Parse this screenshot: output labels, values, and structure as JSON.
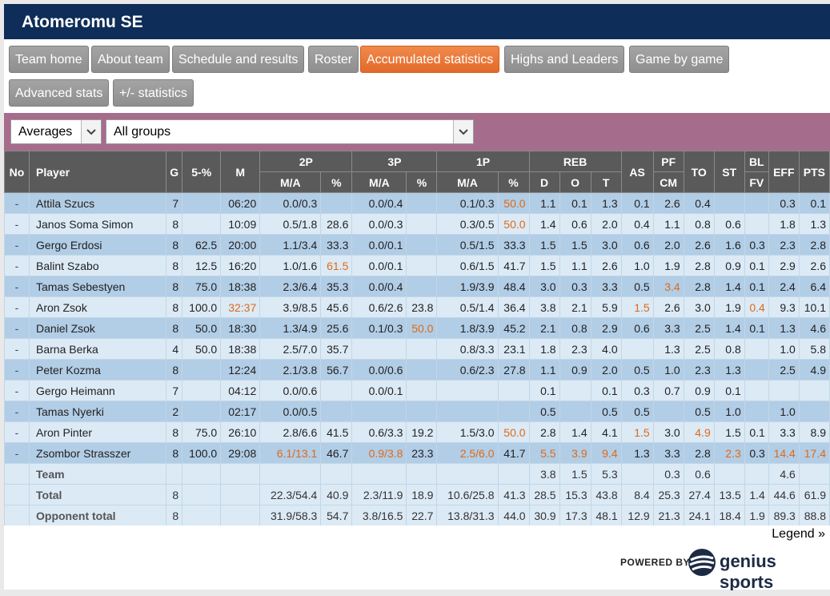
{
  "team": {
    "title": "Atomeromu SE"
  },
  "nav": {
    "tabs": [
      {
        "label": "Team home"
      },
      {
        "label": "About team"
      },
      {
        "label": "Schedule and results"
      },
      {
        "label": "Roster"
      },
      {
        "label": "Accumulated statistics",
        "active": true
      },
      {
        "label": "Highs and Leaders"
      },
      {
        "label": "Game by game"
      },
      {
        "label": "Advanced stats"
      },
      {
        "label": "+/- statistics"
      }
    ]
  },
  "filters": {
    "mode": "Averages",
    "group": "All groups"
  },
  "table": {
    "header_top": {
      "no": "No",
      "player": "Player",
      "g": "G",
      "five": "5-%",
      "m": "M",
      "p2": "2P",
      "p3": "3P",
      "p1": "1P",
      "reb": "REB",
      "as": "AS",
      "pf": "PF",
      "to": "TO",
      "st": "ST",
      "bl": "BL",
      "eff": "EFF",
      "pts": "PTS"
    },
    "header_sub": {
      "p2_ma": "M/A",
      "p2_pct": "%",
      "p3_ma": "M/A",
      "p3_pct": "%",
      "p1_ma": "M/A",
      "p1_pct": "%",
      "d": "D",
      "o": "O",
      "t": "T",
      "cm": "CM",
      "fv": "FV"
    },
    "rows": [
      {
        "no": "-",
        "name": "Attila Szucs",
        "g": "7",
        "five": "",
        "m": "06:20",
        "p2ma": "0.0/0.3",
        "p2p": "",
        "p3ma": "0.0/0.4",
        "p3p": "",
        "p1ma": "0.1/0.3",
        "p1p": "50.0",
        "d": "1.1",
        "o": "0.1",
        "t": "1.3",
        "as": "0.1",
        "pf": "2.6",
        "cm": "",
        "to": "0.4",
        "st": "",
        "bl": "",
        "fv": "",
        "eff": "0.3",
        "pts": "0.1",
        "hi": [
          "p1p"
        ]
      },
      {
        "no": "-",
        "name": "Janos Soma Simon",
        "g": "8",
        "five": "",
        "m": "10:09",
        "p2ma": "0.5/1.8",
        "p2p": "28.6",
        "p3ma": "0.0/0.3",
        "p3p": "",
        "p1ma": "0.3/0.5",
        "p1p": "50.0",
        "d": "1.4",
        "o": "0.6",
        "t": "2.0",
        "as": "0.4",
        "pf": "1.1",
        "to": "0.8",
        "st": "0.6",
        "bl": "",
        "eff": "1.8",
        "pts": "1.3",
        "hi": [
          "p1p"
        ]
      },
      {
        "no": "-",
        "name": "Gergo Erdosi",
        "g": "8",
        "five": "62.5",
        "m": "20:00",
        "p2ma": "1.1/3.4",
        "p2p": "33.3",
        "p3ma": "0.0/0.1",
        "p3p": "",
        "p1ma": "0.5/1.5",
        "p1p": "33.3",
        "d": "1.5",
        "o": "1.5",
        "t": "3.0",
        "as": "0.6",
        "pf": "2.0",
        "to": "2.6",
        "st": "1.6",
        "bl": "0.3",
        "eff": "2.3",
        "pts": "2.8",
        "hi": []
      },
      {
        "no": "-",
        "name": "Balint Szabo",
        "g": "8",
        "five": "12.5",
        "m": "16:20",
        "p2ma": "1.0/1.6",
        "p2p": "61.5",
        "p3ma": "0.0/0.1",
        "p3p": "",
        "p1ma": "0.6/1.5",
        "p1p": "41.7",
        "d": "1.5",
        "o": "1.1",
        "t": "2.6",
        "as": "1.0",
        "pf": "1.9",
        "to": "2.8",
        "st": "0.9",
        "bl": "0.1",
        "eff": "2.9",
        "pts": "2.6",
        "hi": [
          "p2p"
        ]
      },
      {
        "no": "-",
        "name": "Tamas Sebestyen",
        "g": "8",
        "five": "75.0",
        "m": "18:38",
        "p2ma": "2.3/6.4",
        "p2p": "35.3",
        "p3ma": "0.0/0.4",
        "p3p": "",
        "p1ma": "1.9/3.9",
        "p1p": "48.4",
        "d": "3.0",
        "o": "0.3",
        "t": "3.3",
        "as": "0.5",
        "pf": "3.4",
        "to": "2.8",
        "st": "1.4",
        "bl": "0.1",
        "eff": "2.4",
        "pts": "6.4",
        "hi": [
          "pf"
        ]
      },
      {
        "no": "-",
        "name": "Aron Zsok",
        "g": "8",
        "five": "100.0",
        "m": "32:37",
        "p2ma": "3.9/8.5",
        "p2p": "45.6",
        "p3ma": "0.6/2.6",
        "p3p": "23.8",
        "p1ma": "0.5/1.4",
        "p1p": "36.4",
        "d": "3.8",
        "o": "2.1",
        "t": "5.9",
        "as": "1.5",
        "pf": "2.6",
        "to": "3.0",
        "st": "1.9",
        "bl": "0.4",
        "eff": "9.3",
        "pts": "10.1",
        "hi": [
          "m",
          "as",
          "bl"
        ]
      },
      {
        "no": "-",
        "name": "Daniel Zsok",
        "g": "8",
        "five": "50.0",
        "m": "18:30",
        "p2ma": "1.3/4.9",
        "p2p": "25.6",
        "p3ma": "0.1/0.3",
        "p3p": "50.0",
        "p1ma": "1.8/3.9",
        "p1p": "45.2",
        "d": "2.1",
        "o": "0.8",
        "t": "2.9",
        "as": "0.6",
        "pf": "3.3",
        "to": "2.5",
        "st": "1.4",
        "bl": "0.1",
        "eff": "1.3",
        "pts": "4.6",
        "hi": [
          "p3p"
        ]
      },
      {
        "no": "-",
        "name": "Barna Berka",
        "g": "4",
        "five": "50.0",
        "m": "18:38",
        "p2ma": "2.5/7.0",
        "p2p": "35.7",
        "p3ma": "",
        "p3p": "",
        "p1ma": "0.8/3.3",
        "p1p": "23.1",
        "d": "1.8",
        "o": "2.3",
        "t": "4.0",
        "as": "",
        "pf": "1.3",
        "to": "2.5",
        "st": "0.8",
        "bl": "",
        "eff": "1.0",
        "pts": "5.8",
        "hi": []
      },
      {
        "no": "-",
        "name": "Peter Kozma",
        "g": "8",
        "five": "",
        "m": "12:24",
        "p2ma": "2.1/3.8",
        "p2p": "56.7",
        "p3ma": "0.0/0.6",
        "p3p": "",
        "p1ma": "0.6/2.3",
        "p1p": "27.8",
        "d": "1.1",
        "o": "0.9",
        "t": "2.0",
        "as": "0.5",
        "pf": "1.0",
        "to": "2.3",
        "st": "1.3",
        "bl": "",
        "eff": "2.5",
        "pts": "4.9",
        "hi": []
      },
      {
        "no": "-",
        "name": "Gergo Heimann",
        "g": "7",
        "five": "",
        "m": "04:12",
        "p2ma": "0.0/0.6",
        "p2p": "",
        "p3ma": "0.0/0.1",
        "p3p": "",
        "p1ma": "",
        "p1p": "",
        "d": "0.1",
        "o": "",
        "t": "0.1",
        "as": "0.3",
        "pf": "0.7",
        "to": "0.9",
        "st": "0.1",
        "bl": "",
        "eff": "",
        "pts": "",
        "hi": []
      },
      {
        "no": "-",
        "name": "Tamas Nyerki",
        "g": "2",
        "five": "",
        "m": "02:17",
        "p2ma": "0.0/0.5",
        "p2p": "",
        "p3ma": "",
        "p3p": "",
        "p1ma": "",
        "p1p": "",
        "d": "0.5",
        "o": "",
        "t": "0.5",
        "as": "0.5",
        "pf": "",
        "to": "0.5",
        "st": "1.0",
        "bl": "",
        "eff": "1.0",
        "pts": "",
        "hi": []
      },
      {
        "no": "-",
        "name": "Aron Pinter",
        "g": "8",
        "five": "75.0",
        "m": "26:10",
        "p2ma": "2.8/6.6",
        "p2p": "41.5",
        "p3ma": "0.6/3.3",
        "p3p": "19.2",
        "p1ma": "1.5/3.0",
        "p1p": "50.0",
        "d": "2.8",
        "o": "1.4",
        "t": "4.1",
        "as": "1.5",
        "pf": "3.0",
        "to": "4.9",
        "st": "1.5",
        "bl": "0.1",
        "eff": "3.3",
        "pts": "8.9",
        "hi": [
          "p1p",
          "as",
          "to"
        ]
      },
      {
        "no": "-",
        "name": "Zsombor Strasszer",
        "g": "8",
        "five": "100.0",
        "m": "29:08",
        "p2ma": "6.1/13.1",
        "p2p": "46.7",
        "p3ma": "0.9/3.8",
        "p3p": "23.3",
        "p1ma": "2.5/6.0",
        "p1p": "41.7",
        "d": "5.5",
        "o": "3.9",
        "t": "9.4",
        "as": "1.3",
        "pf": "3.3",
        "to": "2.8",
        "st": "2.3",
        "bl": "0.3",
        "eff": "14.4",
        "pts": "17.4",
        "hi": [
          "p2ma",
          "p3ma",
          "p1ma",
          "d",
          "o",
          "t",
          "st",
          "eff",
          "pts"
        ]
      }
    ],
    "totals": [
      {
        "name": "Team",
        "g": "",
        "five": "",
        "m": "",
        "p2ma": "",
        "p2p": "",
        "p3ma": "",
        "p3p": "",
        "p1ma": "",
        "p1p": "",
        "d": "3.8",
        "o": "1.5",
        "t": "5.3",
        "as": "",
        "pf": "0.3",
        "to": "0.6",
        "st": "",
        "bl": "",
        "eff": "4.6",
        "pts": ""
      },
      {
        "name": "Total",
        "g": "8",
        "five": "",
        "m": "",
        "p2ma": "22.3/54.4",
        "p2p": "40.9",
        "p3ma": "2.3/11.9",
        "p3p": "18.9",
        "p1ma": "10.6/25.8",
        "p1p": "41.3",
        "d": "28.5",
        "o": "15.3",
        "t": "43.8",
        "as": "8.4",
        "pf": "25.3",
        "to": "27.4",
        "st": "13.5",
        "bl": "1.4",
        "eff": "44.6",
        "pts": "61.9"
      },
      {
        "name": "Opponent total",
        "g": "8",
        "five": "",
        "m": "",
        "p2ma": "31.9/58.3",
        "p2p": "54.7",
        "p3ma": "3.8/16.5",
        "p3p": "22.7",
        "p1ma": "13.8/31.3",
        "p1p": "44.0",
        "d": "30.9",
        "o": "17.3",
        "t": "48.1",
        "as": "12.9",
        "pf": "21.3",
        "to": "24.1",
        "st": "18.4",
        "bl": "1.9",
        "eff": "89.3",
        "pts": "88.8"
      }
    ]
  },
  "footer": {
    "legend": "Legend »",
    "powered_by": "POWERED BY",
    "brand": "genius sports"
  },
  "colors": {
    "header_bg": "#0e2d58",
    "active_tab": "#e46a2a",
    "filter_bar": "#a66c8b",
    "highlight_text": "#de6a18"
  }
}
